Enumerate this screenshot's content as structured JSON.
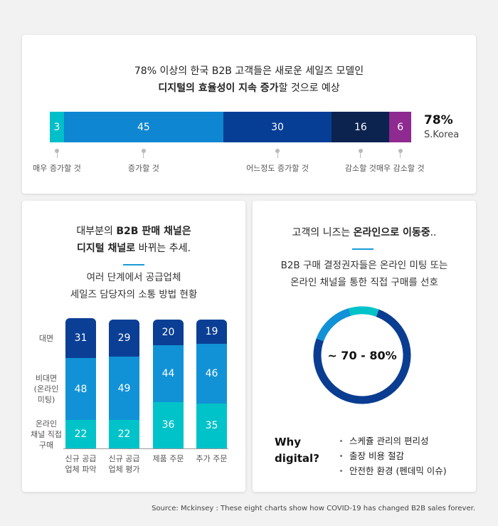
{
  "top": {
    "headline_line1": "78% 이상의 한국 B2B 고객들은 새로운 세일즈 모델인",
    "headline_line2_bold": "디지털의 효율성이 지속 증가",
    "headline_line2_rest": "할 것으로 예상",
    "pct": "78%",
    "country": "S.Korea"
  },
  "left": {
    "headline_line1_pre": "대부분의 ",
    "headline_line1_bold": "B2B 판매 채널은",
    "headline_line2_bold": "디지털 채널로",
    "headline_line2_rest": " 바뀌는 추세.",
    "sub_line1": "여러 단계에서 공급업체",
    "sub_line2": "세일즈 담당자의 소통 방법 현황"
  },
  "right": {
    "headline_pre": "고객의 니즈는 ",
    "headline_bold": "온라인으로 이동중",
    "headline_post": "..",
    "sub_line1": "B2B 구매 결정권자들은 온라인 미팅 또는",
    "sub_line2": "온라인 채널을 통한 직접 구매를 선호",
    "donut_label": "~ 70 - 80%",
    "why_line1": "Why",
    "why_line2": "digital?",
    "benefits": [
      "스케쥴 관리의 편리성",
      "출장 비용 절감",
      "안전한 환경 (펜데믹 이슈)"
    ]
  },
  "source": "Source: Mckinsey : These eight charts show how COVID-19 has changed B2B sales forever.",
  "chart_data": [
    {
      "type": "bar",
      "orientation": "horizontal-stacked",
      "categories": [
        "매우 증가할 것",
        "증가할 것",
        "어느정도 증가할 것",
        "감소할 것",
        "매우 감소할 것"
      ],
      "values": [
        3,
        45,
        30,
        16,
        6
      ],
      "colors": [
        "#00bfc8",
        "#0f86d1",
        "#073e95",
        "#0c2350",
        "#8f2a91"
      ]
    },
    {
      "type": "bar",
      "orientation": "vertical-stacked",
      "categories": [
        [
          "신규 공급",
          "업체 파악"
        ],
        [
          "신규 공급",
          "업체 평가"
        ],
        [
          "제품 주문"
        ],
        [
          "추가 주문"
        ]
      ],
      "series": [
        {
          "name": "대면",
          "values": [
            31,
            29,
            20,
            19
          ],
          "color": "#0b3f95"
        },
        {
          "name": "비대면 (온라인 미팅)",
          "name_lines": [
            "비대면",
            "(온라인",
            "미팅)"
          ],
          "values": [
            48,
            49,
            44,
            46
          ],
          "color": "#1192d6"
        },
        {
          "name": "온라인 채널 직접 구매",
          "name_lines": [
            "온라인",
            "채널 직접",
            "구매"
          ],
          "values": [
            22,
            22,
            36,
            35
          ],
          "color": "#00c3c9"
        }
      ]
    },
    {
      "type": "pie",
      "variant": "donut",
      "label": "~ 70 - 80%",
      "segments": [
        {
          "value": 75,
          "color": "#0a3d91"
        },
        {
          "value": 15,
          "color": "#1191d6"
        },
        {
          "value": 10,
          "color": "#00c3c9"
        }
      ]
    }
  ]
}
